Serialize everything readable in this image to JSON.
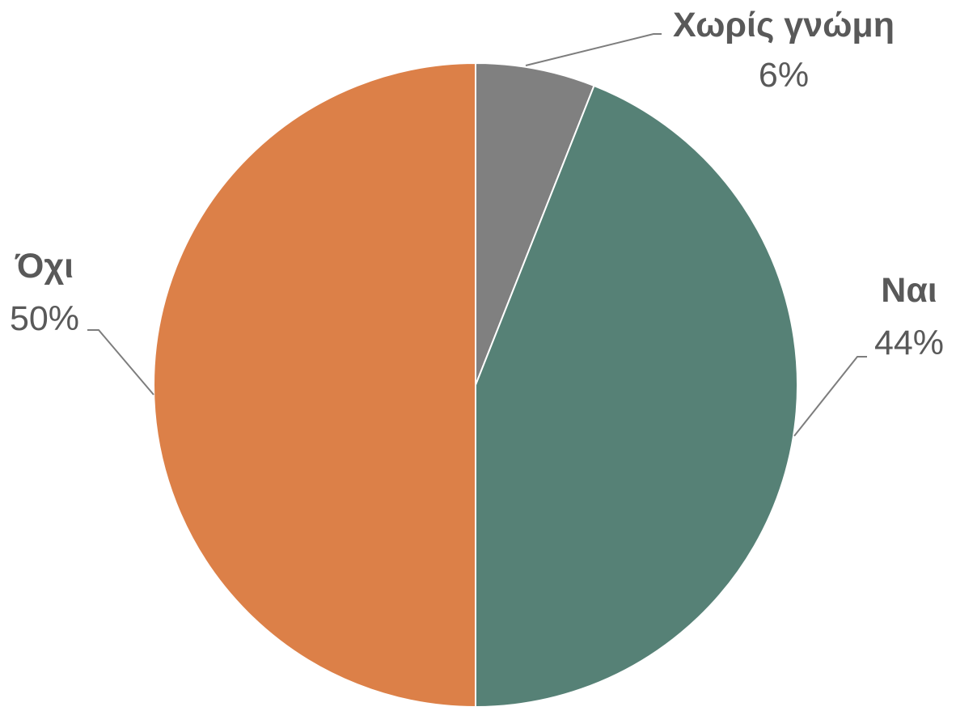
{
  "chart_data": {
    "type": "pie",
    "categories": [
      "Χωρίς γνώμη",
      "Ναι",
      "Όχι"
    ],
    "values": [
      6,
      44,
      50
    ],
    "value_labels": [
      "6%",
      "44%",
      "50%"
    ],
    "colors": [
      "#808080",
      "#568176",
      "#dc8048"
    ],
    "start_angle_deg": 0,
    "direction": "clockwise",
    "legend": "none",
    "data_labels": "outside with leader lines"
  }
}
